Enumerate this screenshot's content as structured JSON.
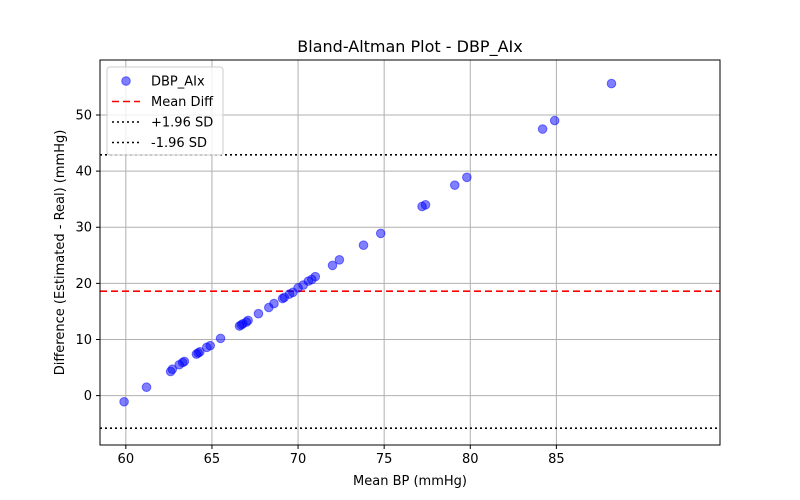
{
  "chart_data": {
    "type": "scatter",
    "title": "Bland-Altman Plot - DBP_AIx",
    "xlabel": "Mean BP (mmHg)",
    "ylabel": "Difference (Estimated - Real) (mmHg)",
    "xlim": [
      58.5,
      94.5
    ],
    "ylim": [
      -8.8,
      59.8
    ],
    "xticks": [
      60,
      65,
      70,
      75,
      80,
      85
    ],
    "yticks": [
      0,
      10,
      20,
      30,
      40,
      50
    ],
    "grid": true,
    "legend_position": "upper-left",
    "series": [
      {
        "name": "DBP_AIx",
        "kind": "scatter",
        "color": "#0000ff",
        "alpha": 0.5,
        "points": [
          [
            59.9,
            -1.1
          ],
          [
            61.2,
            1.5
          ],
          [
            62.6,
            4.3
          ],
          [
            62.7,
            4.7
          ],
          [
            63.1,
            5.5
          ],
          [
            63.3,
            5.9
          ],
          [
            63.4,
            6.1
          ],
          [
            64.1,
            7.4
          ],
          [
            64.2,
            7.6
          ],
          [
            64.3,
            7.8
          ],
          [
            64.7,
            8.6
          ],
          [
            64.9,
            8.9
          ],
          [
            65.5,
            10.2
          ],
          [
            66.6,
            12.4
          ],
          [
            66.7,
            12.6
          ],
          [
            66.8,
            12.8
          ],
          [
            67.0,
            13.1
          ],
          [
            67.1,
            13.4
          ],
          [
            67.7,
            14.6
          ],
          [
            68.3,
            15.7
          ],
          [
            68.6,
            16.4
          ],
          [
            69.1,
            17.3
          ],
          [
            69.2,
            17.5
          ],
          [
            69.5,
            18.1
          ],
          [
            69.7,
            18.4
          ],
          [
            70.0,
            19.2
          ],
          [
            70.3,
            19.7
          ],
          [
            70.6,
            20.4
          ],
          [
            70.8,
            20.7
          ],
          [
            71.0,
            21.2
          ],
          [
            72.0,
            23.2
          ],
          [
            72.4,
            24.2
          ],
          [
            73.8,
            26.8
          ],
          [
            74.8,
            28.9
          ],
          [
            77.2,
            33.7
          ],
          [
            77.4,
            34.0
          ],
          [
            79.1,
            37.5
          ],
          [
            79.8,
            38.9
          ],
          [
            84.2,
            47.5
          ],
          [
            84.9,
            49.0
          ],
          [
            88.2,
            55.6
          ]
        ]
      },
      {
        "name": "Mean Diff",
        "kind": "hline",
        "y": 18.6,
        "color": "#ff0000",
        "linestyle": "dashed"
      },
      {
        "name": "+1.96 SD",
        "kind": "hline",
        "y": 42.9,
        "color": "#000000",
        "linestyle": "dotted"
      },
      {
        "name": "-1.96 SD",
        "kind": "hline",
        "y": -5.8,
        "color": "#000000",
        "linestyle": "dotted"
      }
    ]
  }
}
